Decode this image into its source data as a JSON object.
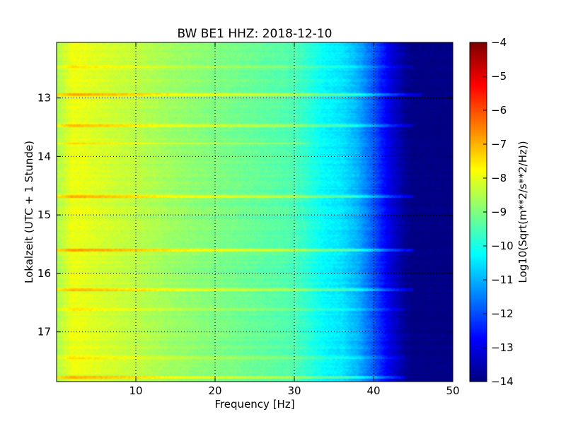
{
  "chart_data": {
    "type": "heatmap",
    "title": "BW BE1 HHZ: 2018-12-10",
    "xlabel": "Frequency [Hz]",
    "ylabel": "Lokalzeit (UTC + 1 Stunde)",
    "colorbar_label": "Log10(Sqrt(m**2/s**2/Hz))",
    "xlim": [
      0,
      50
    ],
    "ylim": [
      12.05,
      17.85
    ],
    "y_inverted": true,
    "clim": [
      -14,
      -4
    ],
    "colormap": "jet",
    "x_ticks": [
      10,
      20,
      30,
      40,
      50
    ],
    "x_tick_labels": [
      "10",
      "20",
      "30",
      "40",
      "50"
    ],
    "y_ticks": [
      13,
      14,
      15,
      16,
      17
    ],
    "y_tick_labels": [
      "13",
      "14",
      "15",
      "16",
      "17"
    ],
    "colorbar_ticks": [
      -4,
      -5,
      -6,
      -7,
      -8,
      -9,
      -10,
      -11,
      -12,
      -13,
      -14
    ],
    "colorbar_tick_labels": [
      "−4",
      "−5",
      "−6",
      "−7",
      "−8",
      "−9",
      "−10",
      "−11",
      "−12",
      "−13",
      "−14"
    ],
    "grid": true,
    "grid_style": "dotted",
    "spectral_profile": {
      "frequency_hz": [
        0.3,
        2,
        5,
        10,
        15,
        20,
        25,
        28,
        30,
        32,
        34,
        36,
        38,
        40,
        42,
        43,
        44,
        45,
        50
      ],
      "log10_psd": [
        -8.5,
        -7.9,
        -8.1,
        -8.4,
        -8.75,
        -9.0,
        -9.25,
        -9.4,
        -9.5,
        -9.9,
        -10.3,
        -10.5,
        -11.0,
        -11.9,
        -13.0,
        -13.4,
        -13.8,
        -14.0,
        -14.0
      ]
    },
    "transient_events": [
      {
        "time_h": 12.47,
        "fmax_hz": 45,
        "delta": 0.4
      },
      {
        "time_h": 12.94,
        "fmax_hz": 46,
        "delta": 0.95
      },
      {
        "time_h": 13.47,
        "fmax_hz": 45,
        "delta": 0.9
      },
      {
        "time_h": 13.78,
        "fmax_hz": 32,
        "delta": 0.5
      },
      {
        "time_h": 14.68,
        "fmax_hz": 45,
        "delta": 0.95
      },
      {
        "time_h": 15.6,
        "fmax_hz": 45,
        "delta": 1.05
      },
      {
        "time_h": 16.27,
        "fmax_hz": 45,
        "delta": 0.85
      },
      {
        "time_h": 16.62,
        "fmax_hz": 44,
        "delta": 0.35
      },
      {
        "time_h": 17.43,
        "fmax_hz": 44,
        "delta": 0.4
      },
      {
        "time_h": 17.78,
        "fmax_hz": 44,
        "delta": 0.85
      }
    ]
  }
}
